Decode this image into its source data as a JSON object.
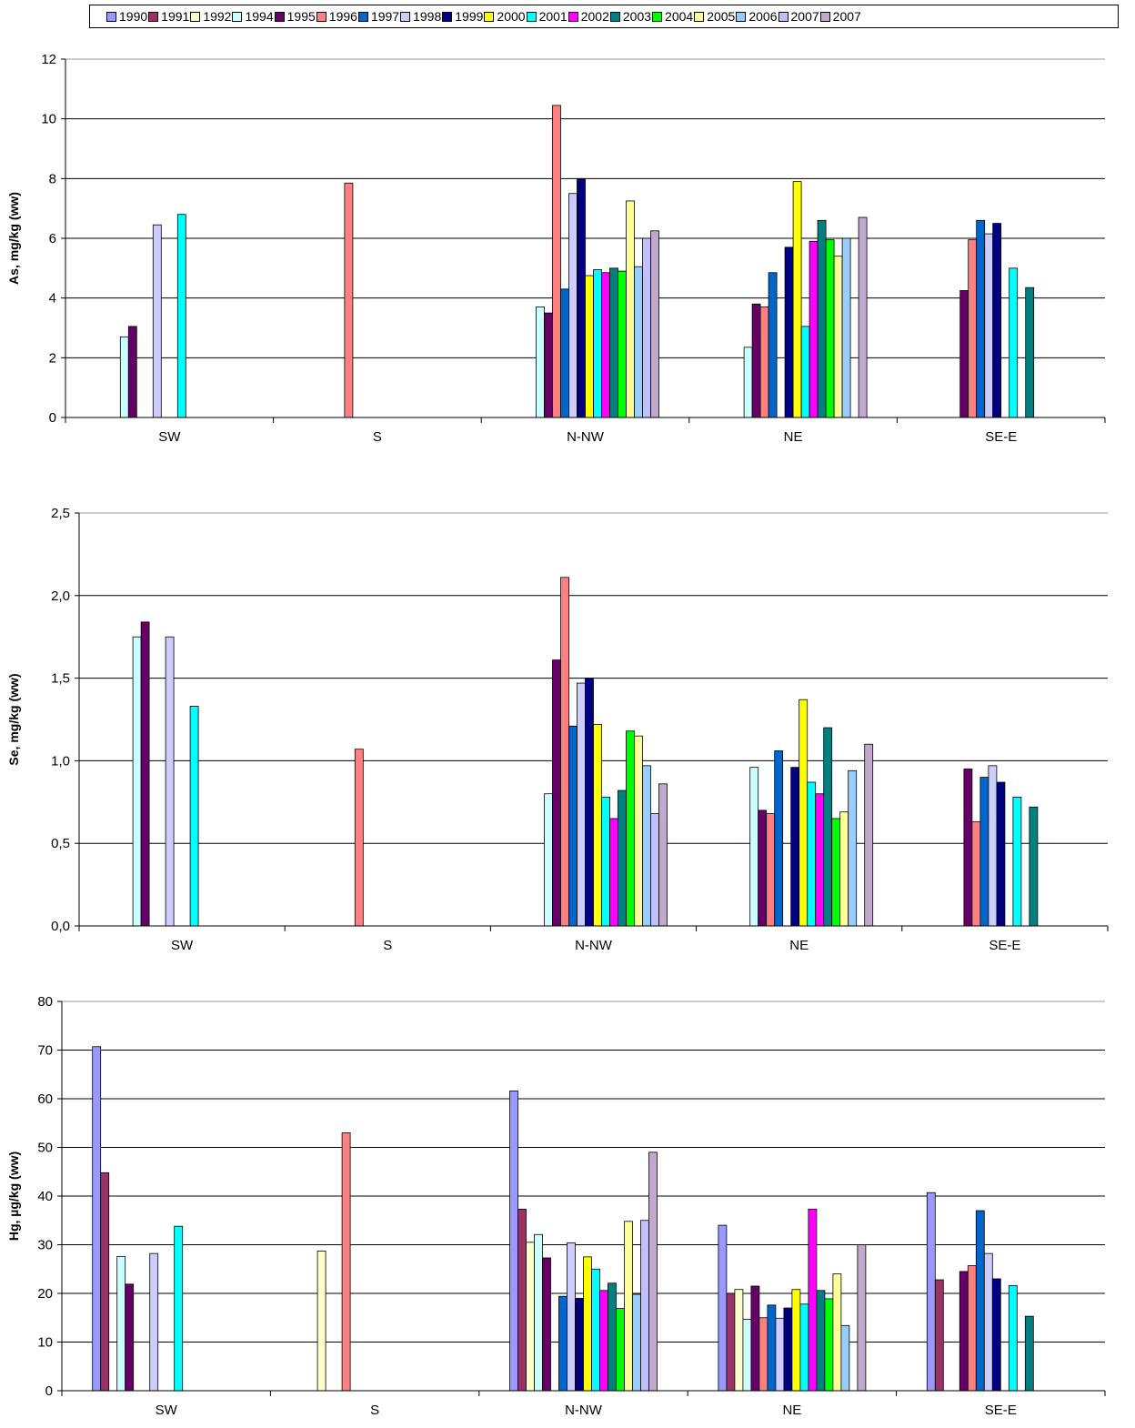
{
  "legend": {
    "items": [
      {
        "name": "1990",
        "color": "#9999ff"
      },
      {
        "name": "1991",
        "color": "#993366"
      },
      {
        "name": "1992",
        "color": "#ffffcc"
      },
      {
        "name": "1994",
        "color": "#ccffff"
      },
      {
        "name": "1995",
        "color": "#660066"
      },
      {
        "name": "1996",
        "color": "#ff8080"
      },
      {
        "name": "1997",
        "color": "#0066cc"
      },
      {
        "name": "1998",
        "color": "#ccccff"
      },
      {
        "name": "1999",
        "color": "#000080"
      },
      {
        "name": "2000",
        "color": "#ffff00"
      },
      {
        "name": "2001",
        "color": "#00ffff"
      },
      {
        "name": "2002",
        "color": "#ff00ff"
      },
      {
        "name": "2003",
        "color": "#008080"
      },
      {
        "name": "2004",
        "color": "#00ff00"
      },
      {
        "name": "2005",
        "color": "#ffff99"
      },
      {
        "name": "2006",
        "color": "#99ccff"
      },
      {
        "name": "2007",
        "color": "#c0c0ff"
      },
      {
        "name": "2007",
        "color": "#c0a9cc"
      }
    ]
  },
  "chart_data": [
    {
      "type": "bar",
      "ylabel": "As, mg/kg (ww)",
      "ylim": [
        0,
        12
      ],
      "yticks": [
        "0",
        "2",
        "4",
        "6",
        "8",
        "10",
        "12"
      ],
      "grid": true,
      "legend_position": "top",
      "categories": [
        "SW",
        "S",
        "N-NW",
        "NE",
        "SE-E"
      ],
      "series": [
        {
          "name": "1990",
          "values": [
            null,
            null,
            null,
            null,
            null
          ]
        },
        {
          "name": "1991",
          "values": [
            null,
            null,
            null,
            null,
            null
          ]
        },
        {
          "name": "1992",
          "values": [
            null,
            null,
            null,
            null,
            null
          ]
        },
        {
          "name": "1994",
          "values": [
            2.7,
            null,
            3.7,
            2.35,
            null
          ]
        },
        {
          "name": "1995",
          "values": [
            3.05,
            null,
            3.5,
            3.8,
            4.25
          ]
        },
        {
          "name": "1996",
          "values": [
            null,
            7.85,
            10.45,
            3.7,
            5.95
          ]
        },
        {
          "name": "1997",
          "values": [
            null,
            null,
            4.3,
            4.85,
            6.6
          ]
        },
        {
          "name": "1998",
          "values": [
            6.45,
            null,
            7.5,
            null,
            6.15
          ]
        },
        {
          "name": "1999",
          "values": [
            null,
            null,
            8.0,
            5.7,
            6.5
          ]
        },
        {
          "name": "2000",
          "values": [
            null,
            null,
            4.75,
            7.9,
            null
          ]
        },
        {
          "name": "2001",
          "values": [
            6.8,
            null,
            4.95,
            3.05,
            5.0
          ]
        },
        {
          "name": "2002",
          "values": [
            null,
            null,
            4.85,
            5.9,
            null
          ]
        },
        {
          "name": "2003",
          "values": [
            null,
            null,
            5.0,
            6.6,
            4.35
          ]
        },
        {
          "name": "2004",
          "values": [
            null,
            null,
            4.9,
            5.95,
            null
          ]
        },
        {
          "name": "2005",
          "values": [
            null,
            null,
            7.25,
            5.4,
            null
          ]
        },
        {
          "name": "2006",
          "values": [
            null,
            null,
            5.05,
            6.0,
            null
          ]
        },
        {
          "name": "2007",
          "values": [
            null,
            null,
            6.0,
            null,
            null
          ]
        },
        {
          "name": "2007",
          "values": [
            null,
            null,
            6.25,
            6.7,
            null
          ]
        }
      ]
    },
    {
      "type": "bar",
      "ylabel": "Se, mg/kg (ww)",
      "ylim": [
        0,
        2.5
      ],
      "yticks": [
        "0,0",
        "0,5",
        "1,0",
        "1,5",
        "2,0",
        "2,5"
      ],
      "grid": true,
      "categories": [
        "SW",
        "S",
        "N-NW",
        "NE",
        "SE-E"
      ],
      "series": [
        {
          "name": "1990",
          "values": [
            null,
            null,
            null,
            null,
            null
          ]
        },
        {
          "name": "1991",
          "values": [
            null,
            null,
            null,
            null,
            null
          ]
        },
        {
          "name": "1992",
          "values": [
            null,
            null,
            null,
            null,
            null
          ]
        },
        {
          "name": "1994",
          "values": [
            1.75,
            null,
            0.8,
            0.96,
            null
          ]
        },
        {
          "name": "1995",
          "values": [
            1.84,
            null,
            1.61,
            0.7,
            0.95
          ]
        },
        {
          "name": "1996",
          "values": [
            null,
            1.07,
            2.11,
            0.68,
            0.63
          ]
        },
        {
          "name": "1997",
          "values": [
            null,
            null,
            1.21,
            1.06,
            0.9
          ]
        },
        {
          "name": "1998",
          "values": [
            1.75,
            null,
            1.47,
            null,
            0.97
          ]
        },
        {
          "name": "1999",
          "values": [
            null,
            null,
            1.5,
            0.96,
            0.87
          ]
        },
        {
          "name": "2000",
          "values": [
            null,
            null,
            1.22,
            1.37,
            null
          ]
        },
        {
          "name": "2001",
          "values": [
            1.33,
            null,
            0.78,
            0.87,
            0.78
          ]
        },
        {
          "name": "2002",
          "values": [
            null,
            null,
            0.65,
            0.8,
            null
          ]
        },
        {
          "name": "2003",
          "values": [
            null,
            null,
            0.82,
            1.2,
            0.72
          ]
        },
        {
          "name": "2004",
          "values": [
            null,
            null,
            1.18,
            0.65,
            null
          ]
        },
        {
          "name": "2005",
          "values": [
            null,
            null,
            1.15,
            0.69,
            null
          ]
        },
        {
          "name": "2006",
          "values": [
            null,
            null,
            0.97,
            0.94,
            null
          ]
        },
        {
          "name": "2007",
          "values": [
            null,
            null,
            0.68,
            null,
            null
          ]
        },
        {
          "name": "2007",
          "values": [
            null,
            null,
            0.86,
            1.1,
            null
          ]
        }
      ]
    },
    {
      "type": "bar",
      "ylabel": "Hg, µg/kg (ww)",
      "ylim": [
        0,
        80
      ],
      "yticks": [
        "0",
        "10",
        "20",
        "30",
        "40",
        "50",
        "60",
        "70",
        "80"
      ],
      "grid": true,
      "categories": [
        "SW",
        "S",
        "N-NW",
        "NE",
        "SE-E"
      ],
      "series": [
        {
          "name": "1990",
          "values": [
            70.7,
            null,
            61.6,
            34.0,
            40.7
          ]
        },
        {
          "name": "1991",
          "values": [
            44.8,
            null,
            37.3,
            20.0,
            22.8
          ]
        },
        {
          "name": "1992",
          "values": [
            null,
            28.7,
            30.5,
            20.8,
            null
          ]
        },
        {
          "name": "1994",
          "values": [
            27.6,
            null,
            32.1,
            14.7,
            null
          ]
        },
        {
          "name": "1995",
          "values": [
            21.9,
            null,
            27.3,
            21.5,
            24.5
          ]
        },
        {
          "name": "1996",
          "values": [
            null,
            53.0,
            null,
            15.0,
            25.7
          ]
        },
        {
          "name": "1997",
          "values": [
            null,
            null,
            19.4,
            17.6,
            37.0
          ]
        },
        {
          "name": "1998",
          "values": [
            28.2,
            null,
            30.4,
            14.9,
            28.2
          ]
        },
        {
          "name": "1999",
          "values": [
            null,
            null,
            19.0,
            17.0,
            23.0
          ]
        },
        {
          "name": "2000",
          "values": [
            null,
            null,
            27.5,
            20.8,
            null
          ]
        },
        {
          "name": "2001",
          "values": [
            33.8,
            null,
            25.0,
            17.8,
            21.6
          ]
        },
        {
          "name": "2002",
          "values": [
            null,
            null,
            20.6,
            37.3,
            null
          ]
        },
        {
          "name": "2003",
          "values": [
            null,
            null,
            22.1,
            20.6,
            15.3
          ]
        },
        {
          "name": "2004",
          "values": [
            null,
            null,
            16.9,
            18.9,
            null
          ]
        },
        {
          "name": "2005",
          "values": [
            null,
            null,
            34.8,
            24.0,
            null
          ]
        },
        {
          "name": "2006",
          "values": [
            null,
            null,
            19.8,
            13.4,
            null
          ]
        },
        {
          "name": "2007",
          "values": [
            null,
            null,
            35.0,
            null,
            null
          ]
        },
        {
          "name": "2007",
          "values": [
            null,
            null,
            49.0,
            30.0,
            null
          ]
        }
      ]
    }
  ]
}
